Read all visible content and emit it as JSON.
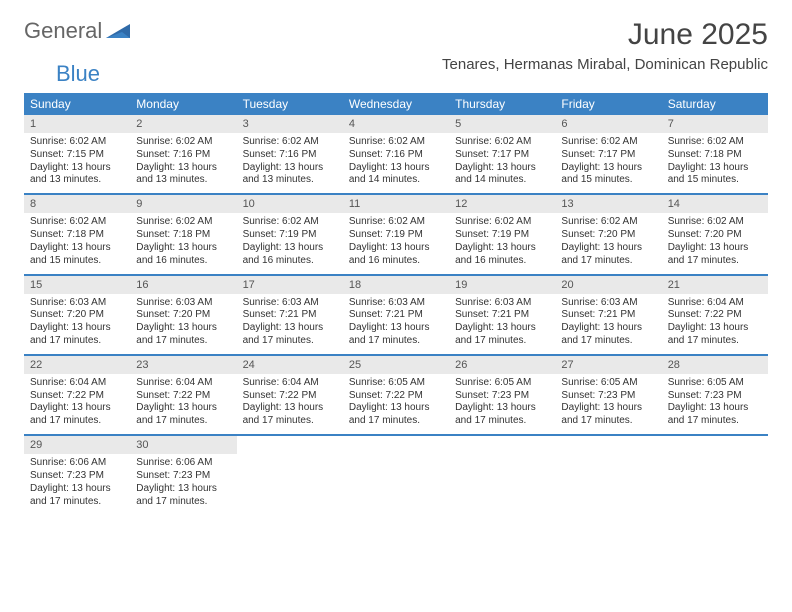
{
  "brand": {
    "word1": "General",
    "word2": "Blue"
  },
  "title": "June 2025",
  "subtitle": "Tenares, Hermanas Mirabal, Dominican Republic",
  "colors": {
    "header_bg": "#3b82c4",
    "header_text": "#ffffff",
    "daynum_bg": "#e9e9e9",
    "row_divider": "#3b82c4",
    "page_bg": "#ffffff",
    "text": "#333333"
  },
  "day_headers": [
    "Sunday",
    "Monday",
    "Tuesday",
    "Wednesday",
    "Thursday",
    "Friday",
    "Saturday"
  ],
  "weeks": [
    [
      {
        "n": "1",
        "sr": "Sunrise: 6:02 AM",
        "ss": "Sunset: 7:15 PM",
        "d1": "Daylight: 13 hours",
        "d2": "and 13 minutes."
      },
      {
        "n": "2",
        "sr": "Sunrise: 6:02 AM",
        "ss": "Sunset: 7:16 PM",
        "d1": "Daylight: 13 hours",
        "d2": "and 13 minutes."
      },
      {
        "n": "3",
        "sr": "Sunrise: 6:02 AM",
        "ss": "Sunset: 7:16 PM",
        "d1": "Daylight: 13 hours",
        "d2": "and 13 minutes."
      },
      {
        "n": "4",
        "sr": "Sunrise: 6:02 AM",
        "ss": "Sunset: 7:16 PM",
        "d1": "Daylight: 13 hours",
        "d2": "and 14 minutes."
      },
      {
        "n": "5",
        "sr": "Sunrise: 6:02 AM",
        "ss": "Sunset: 7:17 PM",
        "d1": "Daylight: 13 hours",
        "d2": "and 14 minutes."
      },
      {
        "n": "6",
        "sr": "Sunrise: 6:02 AM",
        "ss": "Sunset: 7:17 PM",
        "d1": "Daylight: 13 hours",
        "d2": "and 15 minutes."
      },
      {
        "n": "7",
        "sr": "Sunrise: 6:02 AM",
        "ss": "Sunset: 7:18 PM",
        "d1": "Daylight: 13 hours",
        "d2": "and 15 minutes."
      }
    ],
    [
      {
        "n": "8",
        "sr": "Sunrise: 6:02 AM",
        "ss": "Sunset: 7:18 PM",
        "d1": "Daylight: 13 hours",
        "d2": "and 15 minutes."
      },
      {
        "n": "9",
        "sr": "Sunrise: 6:02 AM",
        "ss": "Sunset: 7:18 PM",
        "d1": "Daylight: 13 hours",
        "d2": "and 16 minutes."
      },
      {
        "n": "10",
        "sr": "Sunrise: 6:02 AM",
        "ss": "Sunset: 7:19 PM",
        "d1": "Daylight: 13 hours",
        "d2": "and 16 minutes."
      },
      {
        "n": "11",
        "sr": "Sunrise: 6:02 AM",
        "ss": "Sunset: 7:19 PM",
        "d1": "Daylight: 13 hours",
        "d2": "and 16 minutes."
      },
      {
        "n": "12",
        "sr": "Sunrise: 6:02 AM",
        "ss": "Sunset: 7:19 PM",
        "d1": "Daylight: 13 hours",
        "d2": "and 16 minutes."
      },
      {
        "n": "13",
        "sr": "Sunrise: 6:02 AM",
        "ss": "Sunset: 7:20 PM",
        "d1": "Daylight: 13 hours",
        "d2": "and 17 minutes."
      },
      {
        "n": "14",
        "sr": "Sunrise: 6:02 AM",
        "ss": "Sunset: 7:20 PM",
        "d1": "Daylight: 13 hours",
        "d2": "and 17 minutes."
      }
    ],
    [
      {
        "n": "15",
        "sr": "Sunrise: 6:03 AM",
        "ss": "Sunset: 7:20 PM",
        "d1": "Daylight: 13 hours",
        "d2": "and 17 minutes."
      },
      {
        "n": "16",
        "sr": "Sunrise: 6:03 AM",
        "ss": "Sunset: 7:20 PM",
        "d1": "Daylight: 13 hours",
        "d2": "and 17 minutes."
      },
      {
        "n": "17",
        "sr": "Sunrise: 6:03 AM",
        "ss": "Sunset: 7:21 PM",
        "d1": "Daylight: 13 hours",
        "d2": "and 17 minutes."
      },
      {
        "n": "18",
        "sr": "Sunrise: 6:03 AM",
        "ss": "Sunset: 7:21 PM",
        "d1": "Daylight: 13 hours",
        "d2": "and 17 minutes."
      },
      {
        "n": "19",
        "sr": "Sunrise: 6:03 AM",
        "ss": "Sunset: 7:21 PM",
        "d1": "Daylight: 13 hours",
        "d2": "and 17 minutes."
      },
      {
        "n": "20",
        "sr": "Sunrise: 6:03 AM",
        "ss": "Sunset: 7:21 PM",
        "d1": "Daylight: 13 hours",
        "d2": "and 17 minutes."
      },
      {
        "n": "21",
        "sr": "Sunrise: 6:04 AM",
        "ss": "Sunset: 7:22 PM",
        "d1": "Daylight: 13 hours",
        "d2": "and 17 minutes."
      }
    ],
    [
      {
        "n": "22",
        "sr": "Sunrise: 6:04 AM",
        "ss": "Sunset: 7:22 PM",
        "d1": "Daylight: 13 hours",
        "d2": "and 17 minutes."
      },
      {
        "n": "23",
        "sr": "Sunrise: 6:04 AM",
        "ss": "Sunset: 7:22 PM",
        "d1": "Daylight: 13 hours",
        "d2": "and 17 minutes."
      },
      {
        "n": "24",
        "sr": "Sunrise: 6:04 AM",
        "ss": "Sunset: 7:22 PM",
        "d1": "Daylight: 13 hours",
        "d2": "and 17 minutes."
      },
      {
        "n": "25",
        "sr": "Sunrise: 6:05 AM",
        "ss": "Sunset: 7:22 PM",
        "d1": "Daylight: 13 hours",
        "d2": "and 17 minutes."
      },
      {
        "n": "26",
        "sr": "Sunrise: 6:05 AM",
        "ss": "Sunset: 7:23 PM",
        "d1": "Daylight: 13 hours",
        "d2": "and 17 minutes."
      },
      {
        "n": "27",
        "sr": "Sunrise: 6:05 AM",
        "ss": "Sunset: 7:23 PM",
        "d1": "Daylight: 13 hours",
        "d2": "and 17 minutes."
      },
      {
        "n": "28",
        "sr": "Sunrise: 6:05 AM",
        "ss": "Sunset: 7:23 PM",
        "d1": "Daylight: 13 hours",
        "d2": "and 17 minutes."
      }
    ],
    [
      {
        "n": "29",
        "sr": "Sunrise: 6:06 AM",
        "ss": "Sunset: 7:23 PM",
        "d1": "Daylight: 13 hours",
        "d2": "and 17 minutes."
      },
      {
        "n": "30",
        "sr": "Sunrise: 6:06 AM",
        "ss": "Sunset: 7:23 PM",
        "d1": "Daylight: 13 hours",
        "d2": "and 17 minutes."
      },
      {
        "empty": true
      },
      {
        "empty": true
      },
      {
        "empty": true
      },
      {
        "empty": true
      },
      {
        "empty": true
      }
    ]
  ]
}
